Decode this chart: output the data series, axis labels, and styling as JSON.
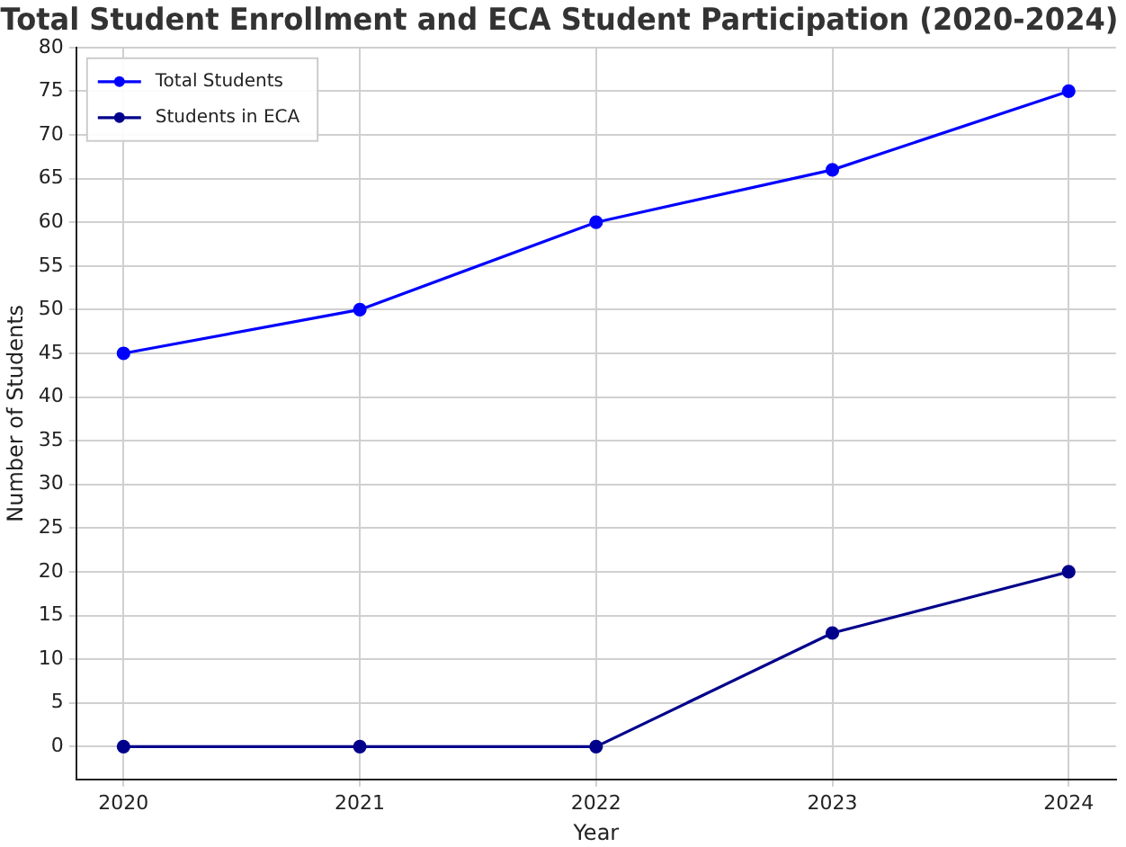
{
  "chart_data": {
    "type": "line",
    "title": "Total Student Enrollment and ECA Student Participation (2020-2024)",
    "xlabel": "Year",
    "ylabel": "Number of Students",
    "x": [
      2020,
      2021,
      2022,
      2023,
      2024
    ],
    "series": [
      {
        "name": "Total Students",
        "color": "#0000ff",
        "values": [
          45,
          50,
          60,
          66,
          75
        ]
      },
      {
        "name": "Students in ECA",
        "color": "#00008b",
        "values": [
          0,
          0,
          0,
          13,
          20
        ]
      }
    ],
    "xlim": [
      2019.8,
      2024.2
    ],
    "xticks": [
      2020,
      2021,
      2022,
      2023,
      2024
    ],
    "ylim": [
      -3.75,
      80
    ],
    "yticks": [
      0,
      5,
      10,
      15,
      20,
      25,
      30,
      35,
      40,
      45,
      50,
      55,
      60,
      65,
      70,
      75,
      80
    ],
    "grid": true,
    "legend": "top left",
    "marker": "circle",
    "line_style": "solid"
  }
}
